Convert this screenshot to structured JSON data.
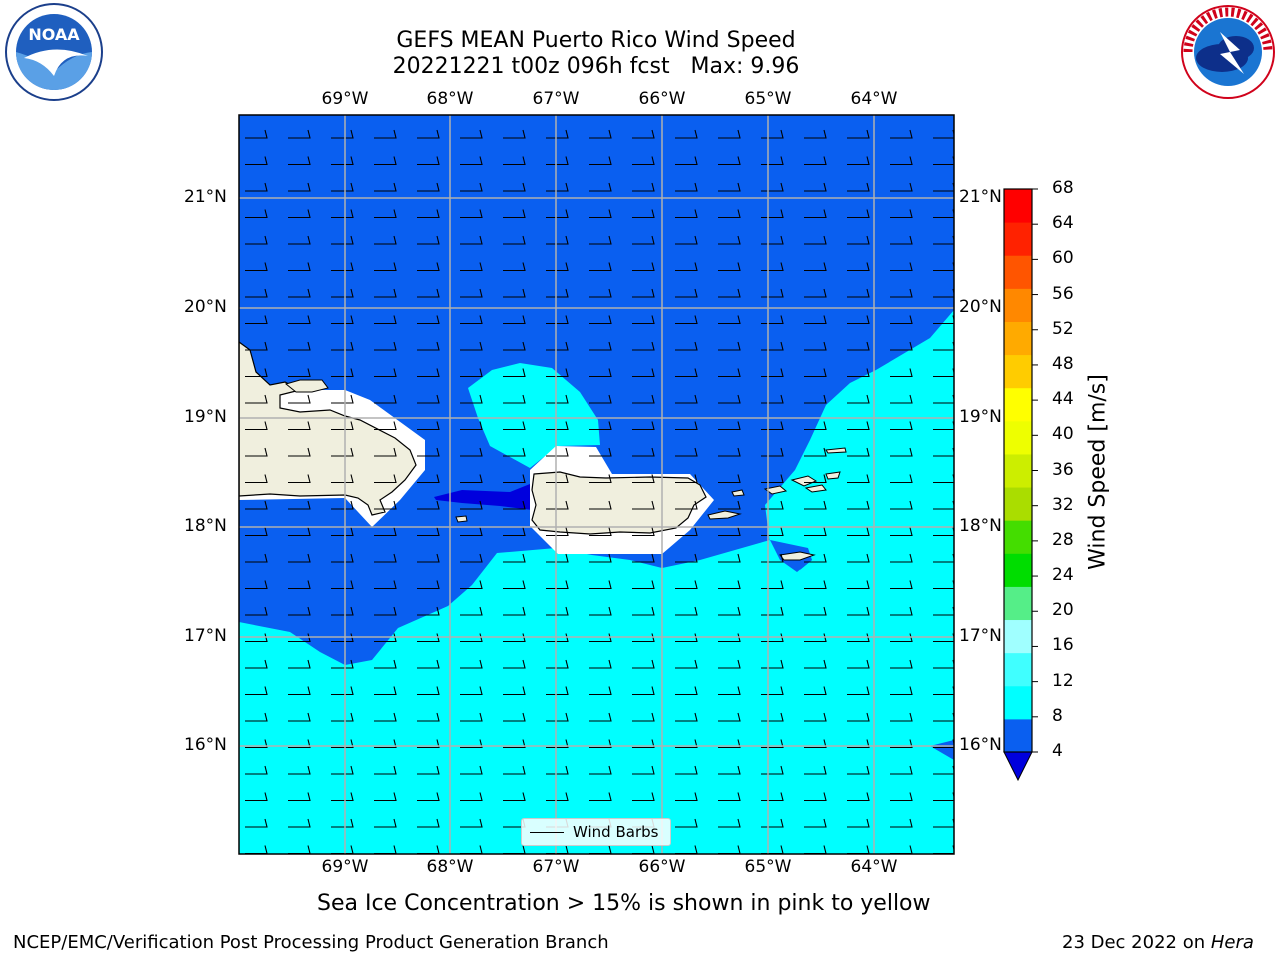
{
  "header": {
    "title_line1": "GEFS MEAN Puerto Rico Wind Speed",
    "title_line2": "20221221 t00z 096h fcst   Max: 9.96"
  },
  "logos": {
    "noaa_text": "NOAA",
    "nws_text": "NATIONAL WEATHER SERVICE"
  },
  "map": {
    "lon_ticks": [
      "69°W",
      "68°W",
      "67°W",
      "66°W",
      "65°W",
      "64°W"
    ],
    "lat_ticks": [
      "21°N",
      "20°N",
      "19°N",
      "18°N",
      "17°N",
      "16°N"
    ],
    "legend_label": "Wind Barbs"
  },
  "colorbar": {
    "label": "Wind Speed [m/s]",
    "ticks": [
      "68",
      "64",
      "60",
      "56",
      "52",
      "48",
      "44",
      "40",
      "36",
      "32",
      "28",
      "24",
      "20",
      "16",
      "12",
      "8",
      "4"
    ],
    "colors": [
      "#0000dd",
      "#0a5ff0",
      "#00ffff",
      "#40ffff",
      "#a0ffff",
      "#55ee88",
      "#00dd00",
      "#44dd00",
      "#aadd00",
      "#ccee00",
      "#eeff00",
      "#ffff00",
      "#ffcc00",
      "#ffaa00",
      "#ff8800",
      "#ff5500",
      "#ff2200",
      "#ff0000"
    ]
  },
  "caption": "Sea Ice Concentration > 15% is shown in pink to yellow",
  "footer": {
    "left": "NCEP/EMC/Verification Post Processing Product Generation Branch",
    "right_prefix": "23 Dec 2022 on ",
    "right_host": "Hera"
  }
}
